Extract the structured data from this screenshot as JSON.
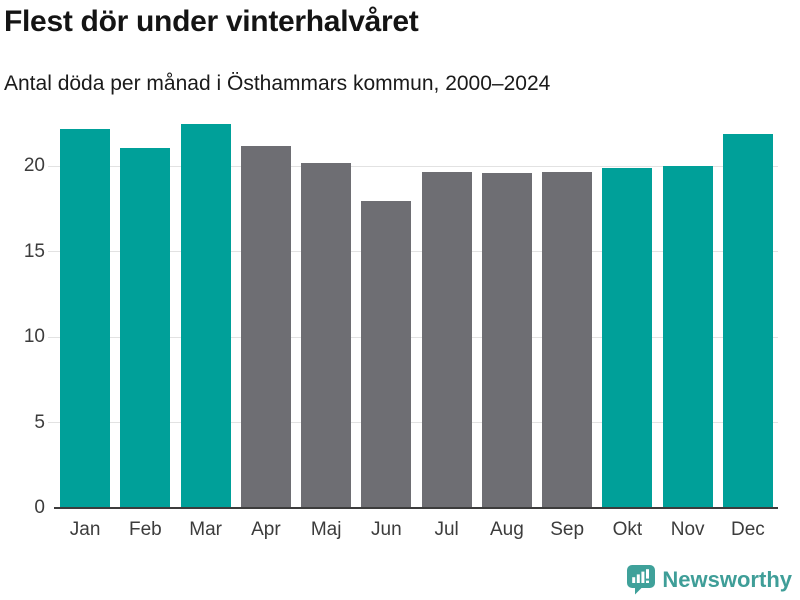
{
  "title": "Flest dör under vinterhalvåret",
  "subtitle": "Antal döda per månad i Östhammars kommun, 2000–2024",
  "chart_data": {
    "type": "bar",
    "title": "Flest dör under vinterhalvåret",
    "subtitle": "Antal döda per månad i Östhammars kommun, 2000–2024",
    "categories": [
      "Jan",
      "Feb",
      "Mar",
      "Apr",
      "Maj",
      "Jun",
      "Jul",
      "Aug",
      "Sep",
      "Okt",
      "Nov",
      "Dec"
    ],
    "values": [
      22.2,
      21.1,
      22.5,
      21.2,
      20.2,
      18.0,
      19.7,
      19.6,
      19.7,
      19.9,
      20.0,
      21.9
    ],
    "seasons": [
      "winter",
      "winter",
      "winter",
      "summer",
      "summer",
      "summer",
      "summer",
      "summer",
      "summer",
      "winter",
      "winter",
      "winter"
    ],
    "xlabel": "",
    "ylabel": "",
    "yticks": [
      0,
      5,
      10,
      15,
      20
    ],
    "ylim": [
      0,
      23
    ],
    "grid": true,
    "legend": "none",
    "colors": {
      "winter": "#00a099",
      "summer": "#6e6e73"
    }
  },
  "branding": {
    "logo_text": "Newsworthy",
    "logo_color": "#3f9e98",
    "logo_icon": "newsworthy-speech-bubble-barchart-icon"
  }
}
